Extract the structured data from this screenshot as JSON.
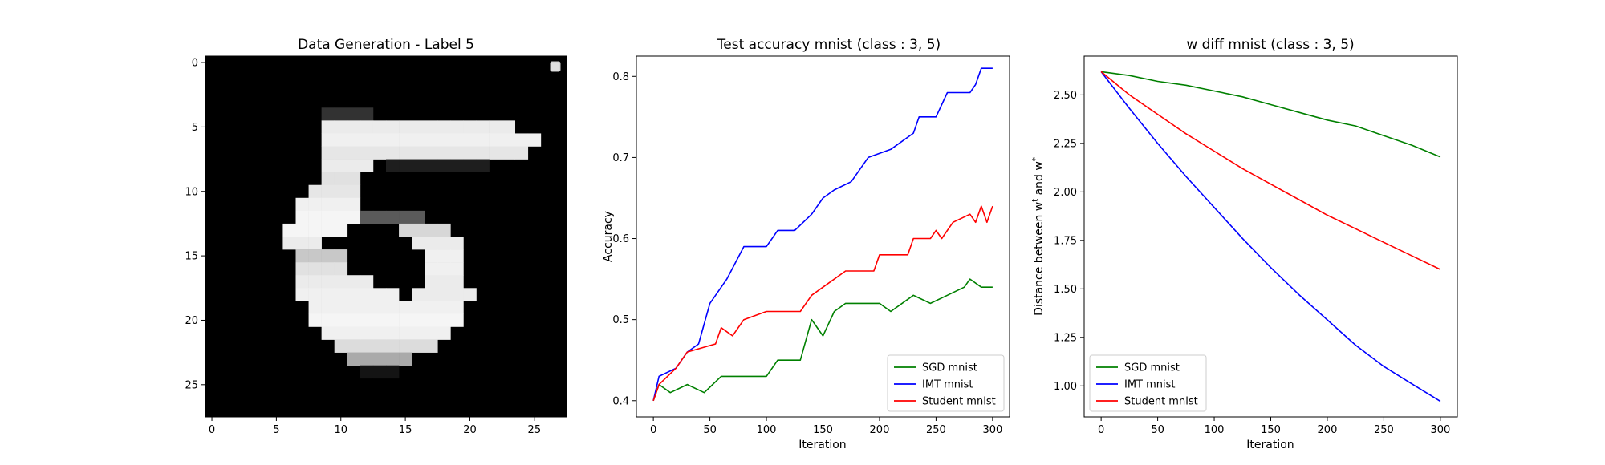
{
  "panels": {
    "image": {
      "title": "Data Generation - Label 5",
      "x_ticks": [
        "0",
        "5",
        "10",
        "15",
        "20",
        "25"
      ],
      "y_ticks": [
        "0",
        "5",
        "10",
        "15",
        "20",
        "25"
      ],
      "legend_marker_color": "#e0e0e0"
    },
    "accuracy": {
      "title": "Test accuracy mnist (class : 3, 5)",
      "xlabel": "Iteration",
      "ylabel": "Accuracy",
      "x_ticks": [
        "0",
        "50",
        "100",
        "150",
        "200",
        "250",
        "300"
      ],
      "y_ticks": [
        "0.4",
        "0.5",
        "0.6",
        "0.7",
        "0.8"
      ]
    },
    "wdiff": {
      "title": "w diff mnist (class : 3, 5)",
      "xlabel": "Iteration",
      "ylabel_main": "Distance between w",
      "ylabel_sup1": "t",
      "ylabel_mid": " and w",
      "ylabel_sup2": "*",
      "x_ticks": [
        "0",
        "50",
        "100",
        "150",
        "200",
        "250",
        "300"
      ],
      "y_ticks": [
        "1.00",
        "1.25",
        "1.50",
        "1.75",
        "2.00",
        "2.25",
        "2.50"
      ]
    }
  },
  "chart_data": [
    {
      "type": "heatmap",
      "title": "Data Generation - Label 5",
      "colormap": "gray",
      "xlim": [
        -0.5,
        27.5
      ],
      "ylim": [
        27.5,
        -0.5
      ],
      "shape": [
        28,
        28
      ],
      "value_range": [
        0,
        255
      ],
      "grid": false,
      "legend": "top-right (empty marker)",
      "strokes": [
        {
          "row": 4,
          "c0": 9,
          "c1": 13,
          "v": 50
        },
        {
          "row": 5,
          "c0": 9,
          "c1": 24,
          "v": 235
        },
        {
          "row": 6,
          "c0": 9,
          "c1": 26,
          "v": 240
        },
        {
          "row": 7,
          "c0": 9,
          "c1": 25,
          "v": 230
        },
        {
          "row": 8,
          "c0": 9,
          "c1": 13,
          "v": 235
        },
        {
          "row": 8,
          "c0": 14,
          "c1": 22,
          "v": 30
        },
        {
          "row": 9,
          "c0": 9,
          "c1": 12,
          "v": 225
        },
        {
          "row": 10,
          "c0": 8,
          "c1": 12,
          "v": 230
        },
        {
          "row": 11,
          "c0": 7,
          "c1": 12,
          "v": 240
        },
        {
          "row": 12,
          "c0": 7,
          "c1": 12,
          "v": 245
        },
        {
          "row": 12,
          "c0": 12,
          "c1": 17,
          "v": 90
        },
        {
          "row": 13,
          "c0": 6,
          "c1": 11,
          "v": 245
        },
        {
          "row": 13,
          "c0": 15,
          "c1": 19,
          "v": 215
        },
        {
          "row": 14,
          "c0": 6,
          "c1": 9,
          "v": 235
        },
        {
          "row": 14,
          "c0": 16,
          "c1": 20,
          "v": 235
        },
        {
          "row": 15,
          "c0": 7,
          "c1": 11,
          "v": 200
        },
        {
          "row": 15,
          "c0": 17,
          "c1": 20,
          "v": 240
        },
        {
          "row": 16,
          "c0": 7,
          "c1": 11,
          "v": 225
        },
        {
          "row": 16,
          "c0": 17,
          "c1": 20,
          "v": 240
        },
        {
          "row": 17,
          "c0": 7,
          "c1": 13,
          "v": 235
        },
        {
          "row": 17,
          "c0": 17,
          "c1": 20,
          "v": 235
        },
        {
          "row": 18,
          "c0": 7,
          "c1": 15,
          "v": 240
        },
        {
          "row": 18,
          "c0": 16,
          "c1": 21,
          "v": 235
        },
        {
          "row": 19,
          "c0": 8,
          "c1": 20,
          "v": 240
        },
        {
          "row": 20,
          "c0": 8,
          "c1": 20,
          "v": 245
        },
        {
          "row": 21,
          "c0": 9,
          "c1": 19,
          "v": 240
        },
        {
          "row": 22,
          "c0": 10,
          "c1": 18,
          "v": 220
        },
        {
          "row": 23,
          "c0": 11,
          "c1": 16,
          "v": 170
        },
        {
          "row": 24,
          "c0": 12,
          "c1": 15,
          "v": 20
        }
      ]
    },
    {
      "type": "line",
      "title": "Test accuracy mnist (class : 3, 5)",
      "xlabel": "Iteration",
      "ylabel": "Accuracy",
      "xlim": [
        -15,
        315
      ],
      "ylim": [
        0.38,
        0.825
      ],
      "grid": false,
      "legend": "lower-right",
      "series": [
        {
          "name": "SGD mnist",
          "color": "#008000",
          "points": [
            [
              0,
              0.4
            ],
            [
              5,
              0.42
            ],
            [
              15,
              0.41
            ],
            [
              30,
              0.42
            ],
            [
              45,
              0.41
            ],
            [
              60,
              0.43
            ],
            [
              100,
              0.43
            ],
            [
              110,
              0.45
            ],
            [
              130,
              0.45
            ],
            [
              140,
              0.5
            ],
            [
              150,
              0.48
            ],
            [
              160,
              0.51
            ],
            [
              170,
              0.52
            ],
            [
              200,
              0.52
            ],
            [
              210,
              0.51
            ],
            [
              230,
              0.53
            ],
            [
              245,
              0.52
            ],
            [
              260,
              0.53
            ],
            [
              275,
              0.54
            ],
            [
              280,
              0.55
            ],
            [
              290,
              0.54
            ],
            [
              300,
              0.54
            ]
          ]
        },
        {
          "name": "IMT mnist",
          "color": "#0000ff",
          "points": [
            [
              0,
              0.4
            ],
            [
              5,
              0.43
            ],
            [
              20,
              0.44
            ],
            [
              30,
              0.46
            ],
            [
              40,
              0.47
            ],
            [
              50,
              0.52
            ],
            [
              60,
              0.54
            ],
            [
              65,
              0.55
            ],
            [
              80,
              0.59
            ],
            [
              100,
              0.59
            ],
            [
              110,
              0.61
            ],
            [
              125,
              0.61
            ],
            [
              140,
              0.63
            ],
            [
              150,
              0.65
            ],
            [
              160,
              0.66
            ],
            [
              175,
              0.67
            ],
            [
              190,
              0.7
            ],
            [
              210,
              0.71
            ],
            [
              230,
              0.73
            ],
            [
              235,
              0.75
            ],
            [
              250,
              0.75
            ],
            [
              260,
              0.78
            ],
            [
              280,
              0.78
            ],
            [
              285,
              0.79
            ],
            [
              290,
              0.81
            ],
            [
              300,
              0.81
            ]
          ]
        },
        {
          "name": "Student mnist",
          "color": "#ff0000",
          "points": [
            [
              0,
              0.4
            ],
            [
              5,
              0.42
            ],
            [
              20,
              0.44
            ],
            [
              30,
              0.46
            ],
            [
              55,
              0.47
            ],
            [
              60,
              0.49
            ],
            [
              70,
              0.48
            ],
            [
              80,
              0.5
            ],
            [
              100,
              0.51
            ],
            [
              130,
              0.51
            ],
            [
              140,
              0.53
            ],
            [
              150,
              0.54
            ],
            [
              170,
              0.56
            ],
            [
              195,
              0.56
            ],
            [
              200,
              0.58
            ],
            [
              225,
              0.58
            ],
            [
              230,
              0.6
            ],
            [
              245,
              0.6
            ],
            [
              250,
              0.61
            ],
            [
              255,
              0.6
            ],
            [
              265,
              0.62
            ],
            [
              280,
              0.63
            ],
            [
              285,
              0.62
            ],
            [
              290,
              0.64
            ],
            [
              295,
              0.62
            ],
            [
              300,
              0.64
            ]
          ]
        }
      ]
    },
    {
      "type": "line",
      "title": "w diff mnist (class : 3, 5)",
      "xlabel": "Iteration",
      "ylabel": "Distance between w^t and w^*",
      "xlim": [
        -15,
        315
      ],
      "ylim": [
        0.84,
        2.7
      ],
      "grid": false,
      "legend": "lower-left",
      "series": [
        {
          "name": "SGD mnist",
          "color": "#008000",
          "points": [
            [
              0,
              2.62
            ],
            [
              25,
              2.6
            ],
            [
              50,
              2.57
            ],
            [
              75,
              2.55
            ],
            [
              100,
              2.52
            ],
            [
              125,
              2.49
            ],
            [
              150,
              2.45
            ],
            [
              175,
              2.41
            ],
            [
              200,
              2.37
            ],
            [
              225,
              2.34
            ],
            [
              250,
              2.29
            ],
            [
              275,
              2.24
            ],
            [
              300,
              2.18
            ]
          ]
        },
        {
          "name": "IMT mnist",
          "color": "#0000ff",
          "points": [
            [
              0,
              2.62
            ],
            [
              25,
              2.43
            ],
            [
              50,
              2.25
            ],
            [
              75,
              2.08
            ],
            [
              100,
              1.92
            ],
            [
              125,
              1.76
            ],
            [
              150,
              1.61
            ],
            [
              175,
              1.47
            ],
            [
              200,
              1.34
            ],
            [
              225,
              1.21
            ],
            [
              250,
              1.1
            ],
            [
              275,
              1.01
            ],
            [
              300,
              0.92
            ]
          ]
        },
        {
          "name": "Student mnist",
          "color": "#ff0000",
          "points": [
            [
              0,
              2.62
            ],
            [
              25,
              2.5
            ],
            [
              50,
              2.4
            ],
            [
              75,
              2.3
            ],
            [
              100,
              2.21
            ],
            [
              125,
              2.12
            ],
            [
              150,
              2.04
            ],
            [
              175,
              1.96
            ],
            [
              200,
              1.88
            ],
            [
              225,
              1.81
            ],
            [
              250,
              1.74
            ],
            [
              275,
              1.67
            ],
            [
              300,
              1.6
            ]
          ]
        }
      ]
    }
  ]
}
